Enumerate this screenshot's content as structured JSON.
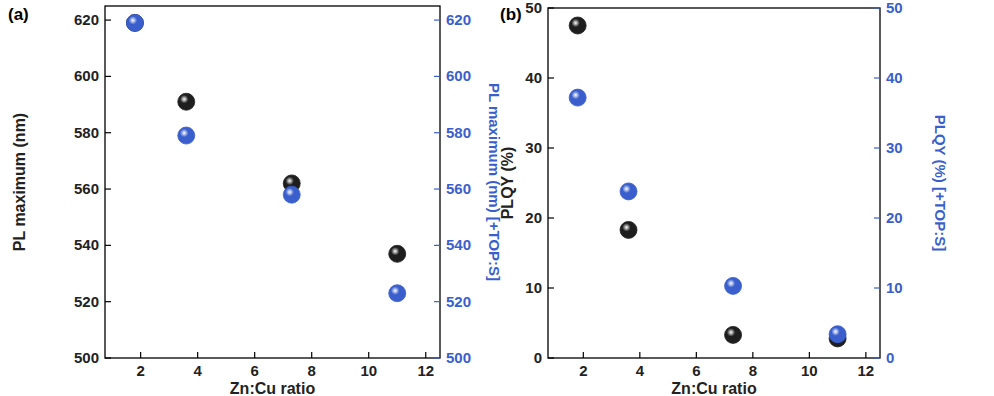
{
  "chart_data": [
    {
      "type": "scatter",
      "title": "(a)",
      "xlabel": "Zn:Cu ratio",
      "ylabel": "PL maximum (nm)",
      "y2label": "PL maximum (nm) [+TOP:S]",
      "xlim": [
        0.75,
        12.5
      ],
      "xticks": [
        2,
        4,
        6,
        8,
        10,
        12
      ],
      "ylim": [
        500,
        625
      ],
      "yticks": [
        500,
        520,
        540,
        560,
        580,
        600,
        620
      ],
      "y2lim": [
        500,
        625
      ],
      "y2ticks": [
        500,
        520,
        540,
        560,
        580,
        600,
        620
      ],
      "marker": "circle",
      "series": [
        {
          "color": "#1e1e1e",
          "x": [
            1.8,
            3.6,
            7.3,
            11
          ],
          "values": [
            619,
            591,
            562,
            537
          ]
        },
        {
          "color": "#3a5fcd",
          "axis": "y2",
          "x": [
            1.8,
            3.6,
            7.3,
            11
          ],
          "values": [
            619,
            579,
            558,
            523
          ]
        }
      ]
    },
    {
      "type": "scatter",
      "title": "(b)",
      "xlabel": "Zn:Cu ratio",
      "ylabel": "PLQY (%)",
      "y2label": "PLQY (%) [+TOP:S]",
      "xlim": [
        0.75,
        12.5
      ],
      "xticks": [
        2,
        4,
        6,
        8,
        10,
        12
      ],
      "ylim": [
        0,
        50
      ],
      "yticks": [
        0,
        10,
        20,
        30,
        40,
        50
      ],
      "y2lim": [
        0,
        50
      ],
      "y2ticks": [
        0,
        10,
        20,
        30,
        40,
        50
      ],
      "marker": "circle",
      "series": [
        {
          "color": "#1e1e1e",
          "x": [
            1.8,
            3.6,
            7.3,
            11
          ],
          "values": [
            47.5,
            18.3,
            3.3,
            2.8
          ]
        },
        {
          "color": "#3a5fcd",
          "axis": "y2",
          "x": [
            1.8,
            3.6,
            7.3,
            11
          ],
          "values": [
            37.2,
            23.8,
            10.3,
            3.4
          ]
        }
      ]
    }
  ]
}
